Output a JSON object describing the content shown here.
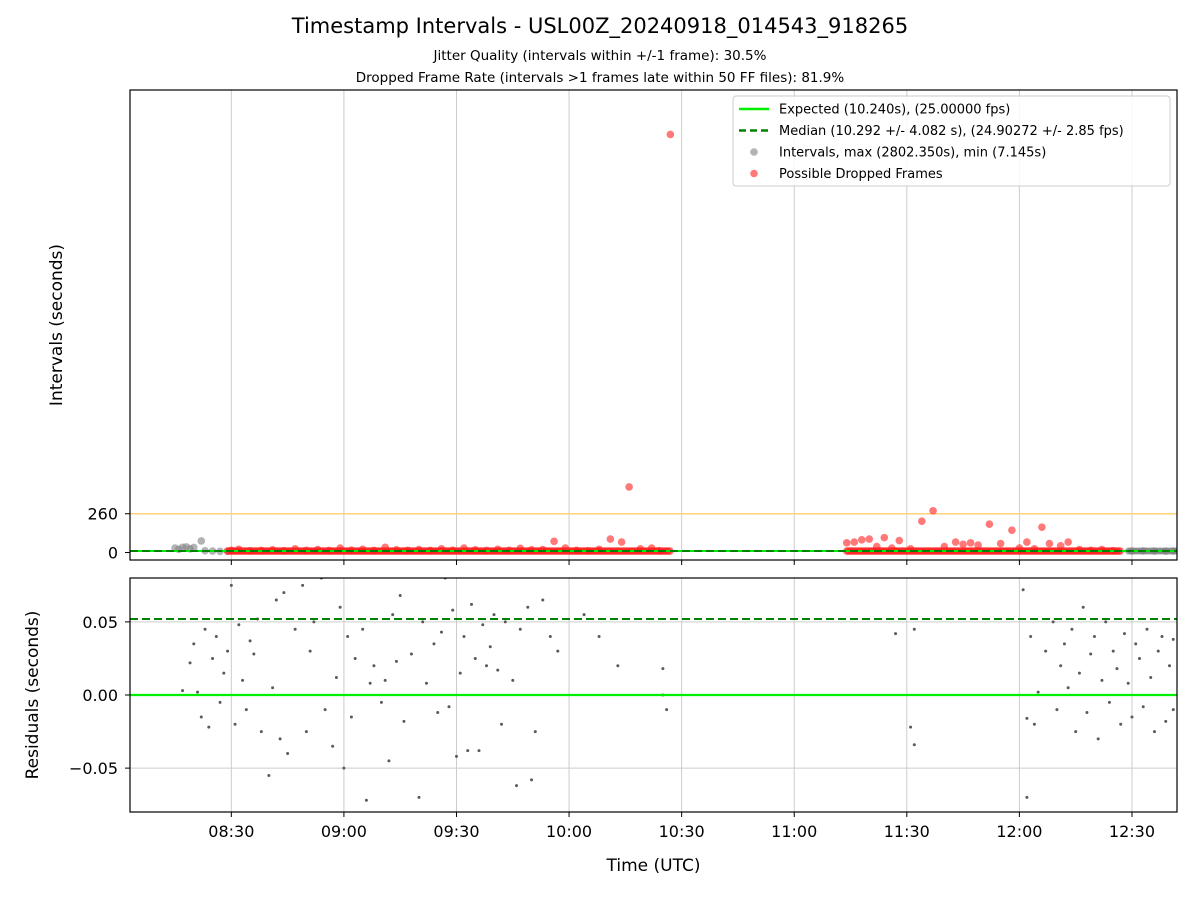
{
  "header": {
    "title": "Timestamp Intervals - USL00Z_20240918_014543_918265",
    "subtitle1": "Jitter Quality (intervals within +/-1 frame): 30.5%",
    "subtitle2": "Dropped Frame Rate (intervals >1 frames late within 50 FF files): 81.9%"
  },
  "colors": {
    "expected": "#00ee00",
    "median": "#008000",
    "intervals": "#808080",
    "dropped": "#ff2020",
    "threshold": "#ffd27a",
    "grid": "#cccccc"
  },
  "chart_data": [
    {
      "type": "scatter",
      "ylabel": "Intervals (seconds)",
      "xlim": [
        "08:03",
        "12:42"
      ],
      "ylim": [
        -50,
        3100
      ],
      "yticks": [
        0,
        260
      ],
      "ytick_labels": [
        "0",
        "260"
      ],
      "threshold_line": 260,
      "grid": "vertical",
      "legend_position": "top-right",
      "legend": [
        "Expected (10.240s), (25.00000 fps)",
        "Median (10.292 +/- 4.082 s), (24.90272 +/- 2.85 fps)",
        "Intervals, max (2802.350s), min (7.145s)",
        "Possible Dropped Frames"
      ],
      "expected_value": 10.24,
      "median_value": 10.292,
      "series": [
        {
          "name": "Intervals, max (2802.350s), min (7.145s)",
          "points": [
            [
              "08:15",
              30
            ],
            [
              "08:16",
              22
            ],
            [
              "08:17",
              35
            ],
            [
              "08:18",
              38
            ],
            [
              "08:19",
              25
            ],
            [
              "08:20",
              34
            ],
            [
              "08:22",
              78
            ],
            [
              "08:23",
              12
            ],
            [
              "08:25",
              10
            ],
            [
              "08:27",
              8
            ],
            [
              "08:29",
              9
            ],
            [
              "12:30",
              10
            ],
            [
              "12:33",
              11
            ],
            [
              "12:36",
              10
            ],
            [
              "12:39",
              9
            ],
            [
              "12:41",
              10
            ]
          ]
        },
        {
          "name": "Possible Dropped Frames",
          "points": [
            [
              "08:30",
              15
            ],
            [
              "08:32",
              22
            ],
            [
              "08:35",
              12
            ],
            [
              "08:38",
              14
            ],
            [
              "08:41",
              18
            ],
            [
              "08:44",
              12
            ],
            [
              "08:47",
              25
            ],
            [
              "08:50",
              15
            ],
            [
              "08:53",
              20
            ],
            [
              "08:56",
              14
            ],
            [
              "08:59",
              30
            ],
            [
              "09:02",
              16
            ],
            [
              "09:05",
              22
            ],
            [
              "09:08",
              14
            ],
            [
              "09:11",
              35
            ],
            [
              "09:14",
              18
            ],
            [
              "09:17",
              15
            ],
            [
              "09:20",
              20
            ],
            [
              "09:23",
              14
            ],
            [
              "09:26",
              25
            ],
            [
              "09:29",
              16
            ],
            [
              "09:32",
              30
            ],
            [
              "09:35",
              18
            ],
            [
              "09:38",
              14
            ],
            [
              "09:41",
              22
            ],
            [
              "09:44",
              15
            ],
            [
              "09:47",
              28
            ],
            [
              "09:50",
              18
            ],
            [
              "09:53",
              20
            ],
            [
              "09:56",
              75
            ],
            [
              "09:59",
              30
            ],
            [
              "10:02",
              15
            ],
            [
              "10:05",
              12
            ],
            [
              "10:08",
              22
            ],
            [
              "10:11",
              90
            ],
            [
              "10:14",
              70
            ],
            [
              "10:16",
              440
            ],
            [
              "10:19",
              25
            ],
            [
              "10:22",
              30
            ],
            [
              "10:24",
              12
            ],
            [
              "10:27",
              2802
            ],
            [
              "11:14",
              65
            ],
            [
              "11:16",
              70
            ],
            [
              "11:18",
              85
            ],
            [
              "11:20",
              90
            ],
            [
              "11:22",
              40
            ],
            [
              "11:24",
              100
            ],
            [
              "11:26",
              30
            ],
            [
              "11:28",
              80
            ],
            [
              "11:31",
              25
            ],
            [
              "11:34",
              210
            ],
            [
              "11:37",
              280
            ],
            [
              "11:40",
              40
            ],
            [
              "11:43",
              70
            ],
            [
              "11:45",
              55
            ],
            [
              "11:47",
              65
            ],
            [
              "11:49",
              50
            ],
            [
              "11:52",
              190
            ],
            [
              "11:55",
              60
            ],
            [
              "11:58",
              150
            ],
            [
              "12:00",
              30
            ],
            [
              "12:02",
              70
            ],
            [
              "12:04",
              25
            ],
            [
              "12:06",
              170
            ],
            [
              "12:08",
              60
            ],
            [
              "12:11",
              45
            ],
            [
              "12:13",
              70
            ],
            [
              "12:16",
              20
            ],
            [
              "12:19",
              15
            ],
            [
              "12:22",
              20
            ],
            [
              "12:25",
              12
            ]
          ]
        }
      ]
    },
    {
      "type": "scatter",
      "ylabel": "Residuals (seconds)",
      "xlabel": "Time (UTC)",
      "xlim": [
        "08:03",
        "12:42"
      ],
      "ylim": [
        -0.08,
        0.08
      ],
      "yticks": [
        0.05,
        0.0,
        -0.05
      ],
      "ytick_labels": [
        "0.05",
        "0.00",
        "−0.05"
      ],
      "xtick_labels": [
        "08:30",
        "09:00",
        "09:30",
        "10:00",
        "10:30",
        "11:00",
        "11:30",
        "12:00",
        "12:30"
      ],
      "grid": "both",
      "expected_residual": 0.0,
      "median_residual": 0.052,
      "series": [
        {
          "name": "Residuals",
          "points": [
            [
              "08:17",
              0.003
            ],
            [
              "08:19",
              0.022
            ],
            [
              "08:20",
              0.035
            ],
            [
              "08:21",
              0.002
            ],
            [
              "08:22",
              -0.015
            ],
            [
              "08:23",
              0.045
            ],
            [
              "08:24",
              -0.022
            ],
            [
              "08:25",
              0.025
            ],
            [
              "08:26",
              0.04
            ],
            [
              "08:27",
              -0.005
            ],
            [
              "08:28",
              0.015
            ],
            [
              "08:29",
              0.03
            ],
            [
              "08:30",
              0.075
            ],
            [
              "08:31",
              -0.02
            ],
            [
              "08:32",
              0.048
            ],
            [
              "08:33",
              0.01
            ],
            [
              "08:34",
              -0.01
            ],
            [
              "08:35",
              0.037
            ],
            [
              "08:36",
              0.028
            ],
            [
              "08:37",
              0.052
            ],
            [
              "08:38",
              -0.025
            ],
            [
              "08:40",
              -0.055
            ],
            [
              "08:41",
              0.005
            ],
            [
              "08:42",
              0.065
            ],
            [
              "08:43",
              -0.03
            ],
            [
              "08:44",
              0.07
            ],
            [
              "08:45",
              -0.04
            ],
            [
              "08:47",
              0.045
            ],
            [
              "08:49",
              0.075
            ],
            [
              "08:50",
              -0.025
            ],
            [
              "08:51",
              0.03
            ],
            [
              "08:52",
              0.05
            ],
            [
              "08:54",
              0.08
            ],
            [
              "08:55",
              -0.01
            ],
            [
              "08:57",
              -0.035
            ],
            [
              "08:58",
              0.012
            ],
            [
              "08:59",
              0.06
            ],
            [
              "09:00",
              -0.05
            ],
            [
              "09:01",
              0.04
            ],
            [
              "09:02",
              -0.015
            ],
            [
              "09:03",
              0.025
            ],
            [
              "09:05",
              0.045
            ],
            [
              "09:06",
              -0.072
            ],
            [
              "09:07",
              0.008
            ],
            [
              "09:08",
              0.02
            ],
            [
              "09:10",
              -0.005
            ],
            [
              "09:11",
              0.01
            ],
            [
              "09:12",
              -0.045
            ],
            [
              "09:13",
              0.055
            ],
            [
              "09:14",
              0.023
            ],
            [
              "09:15",
              0.068
            ],
            [
              "09:16",
              -0.018
            ],
            [
              "09:18",
              0.028
            ],
            [
              "09:20",
              -0.07
            ],
            [
              "09:21",
              0.05
            ],
            [
              "09:22",
              0.008
            ],
            [
              "09:24",
              0.035
            ],
            [
              "09:25",
              -0.012
            ],
            [
              "09:26",
              0.043
            ],
            [
              "09:27",
              0.08
            ],
            [
              "09:28",
              -0.008
            ],
            [
              "09:29",
              0.058
            ],
            [
              "09:30",
              -0.042
            ],
            [
              "09:31",
              0.015
            ],
            [
              "09:32",
              0.04
            ],
            [
              "09:33",
              -0.038
            ],
            [
              "09:34",
              0.062
            ],
            [
              "09:35",
              0.025
            ],
            [
              "09:36",
              -0.038
            ],
            [
              "09:37",
              0.048
            ],
            [
              "09:38",
              0.02
            ],
            [
              "09:39",
              0.033
            ],
            [
              "09:40",
              0.055
            ],
            [
              "09:41",
              0.017
            ],
            [
              "09:42",
              -0.02
            ],
            [
              "09:43",
              0.05
            ],
            [
              "09:45",
              0.01
            ],
            [
              "09:46",
              -0.062
            ],
            [
              "09:47",
              0.045
            ],
            [
              "09:49",
              0.06
            ],
            [
              "09:50",
              -0.058
            ],
            [
              "09:51",
              -0.025
            ],
            [
              "09:53",
              0.065
            ],
            [
              "09:55",
              0.04
            ],
            [
              "09:57",
              0.03
            ],
            [
              "10:04",
              0.055
            ],
            [
              "10:08",
              0.04
            ],
            [
              "10:13",
              0.02
            ],
            [
              "10:25",
              0.018
            ],
            [
              "10:25",
              0.0
            ],
            [
              "10:26",
              -0.01
            ],
            [
              "11:27",
              0.042
            ],
            [
              "11:31",
              -0.022
            ],
            [
              "11:32",
              0.045
            ],
            [
              "11:32",
              -0.034
            ],
            [
              "12:01",
              0.072
            ],
            [
              "12:02",
              -0.016
            ],
            [
              "12:02",
              -0.07
            ],
            [
              "12:03",
              0.04
            ],
            [
              "12:04",
              -0.02
            ],
            [
              "12:05",
              0.002
            ],
            [
              "12:07",
              0.03
            ],
            [
              "12:09",
              0.05
            ],
            [
              "12:10",
              -0.01
            ],
            [
              "12:11",
              0.02
            ],
            [
              "12:12",
              0.035
            ],
            [
              "12:13",
              0.005
            ],
            [
              "12:14",
              0.045
            ],
            [
              "12:15",
              -0.025
            ],
            [
              "12:16",
              0.015
            ],
            [
              "12:17",
              0.06
            ],
            [
              "12:18",
              -0.012
            ],
            [
              "12:19",
              0.028
            ],
            [
              "12:20",
              0.04
            ],
            [
              "12:21",
              -0.03
            ],
            [
              "12:22",
              0.01
            ],
            [
              "12:23",
              0.05
            ],
            [
              "12:24",
              -0.005
            ],
            [
              "12:25",
              0.03
            ],
            [
              "12:26",
              0.018
            ],
            [
              "12:27",
              -0.02
            ],
            [
              "12:28",
              0.042
            ],
            [
              "12:29",
              0.008
            ],
            [
              "12:30",
              -0.015
            ],
            [
              "12:31",
              0.035
            ],
            [
              "12:32",
              0.025
            ],
            [
              "12:33",
              -0.008
            ],
            [
              "12:34",
              0.045
            ],
            [
              "12:35",
              0.012
            ],
            [
              "12:36",
              -0.025
            ],
            [
              "12:37",
              0.03
            ],
            [
              "12:38",
              0.04
            ],
            [
              "12:39",
              -0.018
            ],
            [
              "12:40",
              0.02
            ],
            [
              "12:41",
              0.038
            ],
            [
              "12:41",
              -0.01
            ]
          ]
        }
      ]
    }
  ]
}
